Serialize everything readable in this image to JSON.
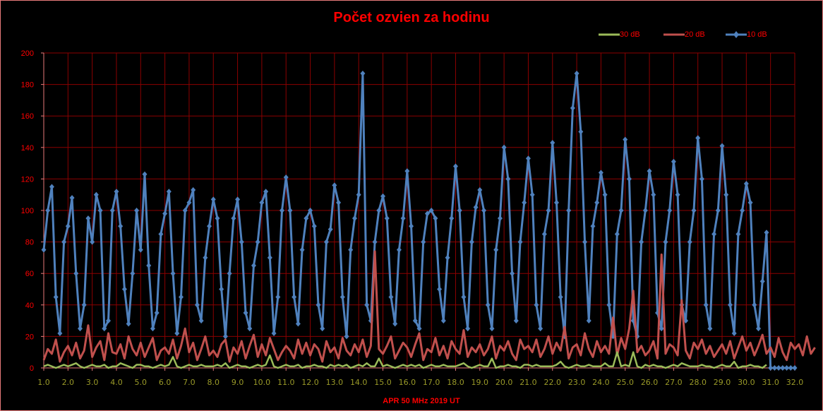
{
  "chart_data": {
    "type": "line",
    "title": "Počet ozvien za hodinu",
    "xlabel": "APR 50 MHz  2019  UT",
    "ylabel": "",
    "xlim": [
      1.0,
      32.0
    ],
    "ylim": [
      0,
      200
    ],
    "x_ticks": [
      "1.0",
      "2.0",
      "3.0",
      "4.0",
      "5.0",
      "6.0",
      "7.0",
      "8.0",
      "9.0",
      "10.0",
      "11.0",
      "12.0",
      "13.0",
      "14.0",
      "15.0",
      "16.0",
      "17.0",
      "18.0",
      "19.0",
      "20.0",
      "21.0",
      "22.0",
      "23.0",
      "24.0",
      "25.0",
      "26.0",
      "27.0",
      "28.0",
      "29.0",
      "30.0",
      "31.0",
      "32.0"
    ],
    "y_ticks": [
      "0",
      "20",
      "40",
      "60",
      "80",
      "100",
      "120",
      "140",
      "160",
      "180",
      "200"
    ],
    "grid": true,
    "legend_placement": "top-right",
    "samples_per_day": 6,
    "x_start": 1.0,
    "colors": {
      "background": "#000000",
      "grid": "#8b0000",
      "title": "#ff0000",
      "y_ticks": "#ff0000",
      "x_ticks": "#9a9a28",
      "s30": "#9bbb59",
      "s20": "#c0504d",
      "s10": "#4f81bd"
    },
    "series": [
      {
        "name": "30 dB",
        "marker": "dash",
        "values": [
          1,
          2,
          1,
          0,
          1,
          2,
          1,
          2,
          3,
          1,
          0,
          1,
          2,
          1,
          1,
          2,
          0,
          1,
          1,
          3,
          2,
          1,
          0,
          2,
          2,
          1,
          1,
          0,
          1,
          2,
          1,
          2,
          7,
          1,
          0,
          1,
          2,
          1,
          1,
          2,
          1,
          1,
          1,
          2,
          1,
          3,
          0,
          1,
          2,
          1,
          1,
          0,
          1,
          2,
          1,
          2,
          8,
          1,
          0,
          1,
          2,
          1,
          1,
          2,
          0,
          1,
          1,
          2,
          1,
          1,
          0,
          2,
          1,
          2,
          1,
          2,
          0,
          1,
          2,
          1,
          3,
          1,
          1,
          6,
          1,
          2,
          1,
          0,
          1,
          2,
          1,
          2,
          1,
          2,
          0,
          1,
          2,
          1,
          1,
          2,
          1,
          1,
          1,
          2,
          3,
          1,
          0,
          1,
          2,
          1,
          1,
          6,
          0,
          1,
          1,
          2,
          1,
          1,
          0,
          2,
          2,
          1,
          2,
          1,
          1,
          1,
          1,
          2,
          4,
          1,
          0,
          1,
          2,
          1,
          1,
          2,
          1,
          1,
          1,
          3,
          1,
          1,
          10,
          1,
          2,
          1,
          10,
          1,
          0,
          2,
          1,
          2,
          1,
          1,
          0,
          1,
          2,
          1,
          3,
          2,
          1,
          1,
          1,
          2,
          1,
          1,
          0,
          1,
          2,
          1,
          1,
          4,
          0,
          1,
          1,
          2,
          1,
          1,
          0,
          2
        ]
      },
      {
        "name": "20 dB",
        "marker": "dash",
        "values": [
          5,
          12,
          9,
          18,
          4,
          10,
          14,
          8,
          16,
          6,
          11,
          27,
          7,
          13,
          17,
          5,
          22,
          10,
          9,
          15,
          6,
          20,
          12,
          8,
          16,
          7,
          13,
          19,
          5,
          11,
          13,
          9,
          18,
          6,
          14,
          25,
          10,
          16,
          5,
          12,
          20,
          8,
          11,
          7,
          15,
          18,
          4,
          13,
          9,
          17,
          6,
          14,
          21,
          7,
          15,
          8,
          19,
          12,
          5,
          10,
          14,
          11,
          6,
          18,
          9,
          16,
          8,
          15,
          12,
          4,
          17,
          10,
          13,
          6,
          19,
          11,
          8,
          15,
          10,
          18,
          7,
          14,
          74,
          12,
          9,
          14,
          20,
          6,
          11,
          16,
          13,
          7,
          15,
          22,
          5,
          12,
          10,
          19,
          8,
          14,
          6,
          17,
          12,
          9,
          24,
          7,
          13,
          10,
          15,
          8,
          12,
          20,
          6,
          14,
          11,
          17,
          9,
          5,
          18,
          12,
          14,
          10,
          18,
          7,
          12,
          20,
          9,
          16,
          11,
          26,
          6,
          13,
          15,
          8,
          22,
          12,
          7,
          17,
          10,
          14,
          9,
          32,
          8,
          19,
          12,
          25,
          49,
          10,
          14,
          8,
          11,
          17,
          6,
          72,
          9,
          15,
          13,
          8,
          43,
          11,
          6,
          16,
          12,
          18,
          9,
          14,
          7,
          11,
          15,
          9,
          17,
          6,
          13,
          20,
          11,
          16,
          8,
          14,
          21,
          9,
          13,
          7,
          19,
          10,
          5,
          16,
          12,
          15,
          8,
          20,
          9,
          13
        ]
      },
      {
        "name": "10 dB",
        "marker": "diamond",
        "values": [
          75,
          100,
          115,
          45,
          22,
          80,
          90,
          108,
          60,
          25,
          40,
          95,
          80,
          110,
          100,
          25,
          30,
          100,
          112,
          90,
          50,
          28,
          60,
          100,
          75,
          123,
          65,
          25,
          35,
          85,
          98,
          112,
          60,
          22,
          45,
          100,
          105,
          113,
          40,
          30,
          70,
          90,
          107,
          95,
          50,
          20,
          60,
          95,
          107,
          80,
          35,
          25,
          65,
          80,
          105,
          112,
          70,
          22,
          45,
          100,
          121,
          100,
          45,
          28,
          75,
          95,
          100,
          90,
          40,
          25,
          80,
          88,
          116,
          105,
          45,
          20,
          75,
          95,
          110,
          187,
          40,
          30,
          80,
          100,
          109,
          95,
          45,
          28,
          75,
          95,
          125,
          90,
          30,
          25,
          80,
          98,
          100,
          95,
          50,
          30,
          70,
          95,
          128,
          100,
          45,
          25,
          80,
          102,
          113,
          100,
          40,
          25,
          75,
          95,
          140,
          120,
          60,
          30,
          80,
          105,
          133,
          110,
          40,
          25,
          85,
          100,
          143,
          105,
          45,
          20,
          100,
          165,
          187,
          150,
          80,
          30,
          90,
          105,
          124,
          110,
          40,
          20,
          85,
          100,
          145,
          120,
          30,
          20,
          80,
          100,
          125,
          110,
          35,
          25,
          80,
          100,
          131,
          110,
          40,
          30,
          80,
          100,
          146,
          120,
          40,
          25,
          85,
          100,
          141,
          110,
          40,
          22,
          85,
          100,
          117,
          105,
          40,
          25,
          55,
          86,
          0,
          0,
          0,
          0,
          0,
          0,
          0
        ]
      }
    ]
  }
}
